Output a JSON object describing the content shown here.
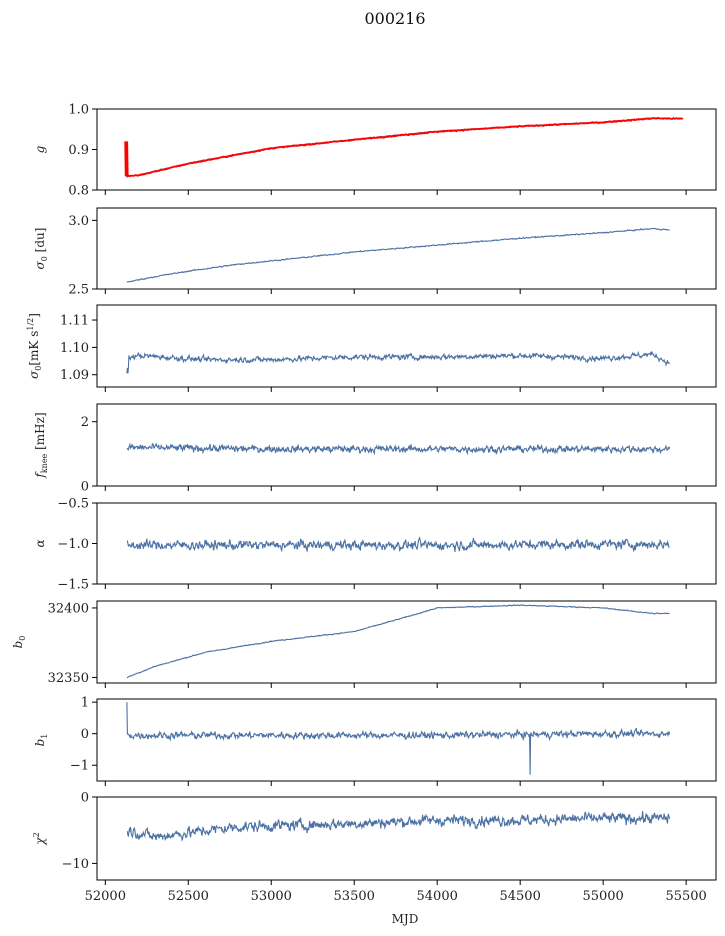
{
  "figure": {
    "title": "000216",
    "xlabel": "MJD",
    "x_ticks": [
      52000,
      52500,
      53000,
      53500,
      54000,
      54500,
      55000,
      55500
    ],
    "xlim": [
      51950,
      55680
    ]
  },
  "chart_data": [
    {
      "type": "line",
      "ylabel_sym": "g",
      "ylabel_sub": "",
      "ylabel_rest": "",
      "ylim": [
        0.8,
        1.0
      ],
      "y_ticks": [
        0.8,
        0.9,
        1.0
      ],
      "y_tick_labels": [
        "0.8",
        "0.9",
        "1.0"
      ],
      "series": [
        {
          "color": "#4c72a4",
          "noise": 0.001,
          "x": [
            52120,
            52200,
            52500,
            53000,
            53500,
            54000,
            54500,
            55000,
            55300,
            55480
          ],
          "y": [
            0.834,
            0.837,
            0.866,
            0.904,
            0.925,
            0.945,
            0.958,
            0.968,
            0.978,
            0.976
          ]
        },
        {
          "color": "#ff0000",
          "noise": 0.0015,
          "spike": [
            52130,
            0.92
          ],
          "x": [
            52120,
            52200,
            52500,
            53000,
            53500,
            54000,
            54500,
            55000,
            55300,
            55480
          ],
          "y": [
            0.834,
            0.836,
            0.865,
            0.903,
            0.924,
            0.944,
            0.957,
            0.967,
            0.977,
            0.976
          ]
        }
      ]
    },
    {
      "type": "line",
      "ylabel_sym": "σ",
      "ylabel_sub": "0",
      "ylabel_rest": " [du]",
      "ylim": [
        2.5,
        3.09
      ],
      "y_ticks": [
        2.5,
        3.0
      ],
      "y_tick_labels": [
        "2.5",
        "3.0"
      ],
      "series": [
        {
          "color": "#4c72a4",
          "noise": 0.005,
          "x": [
            52130,
            52300,
            52500,
            52800,
            53200,
            53500,
            54000,
            54500,
            55000,
            55300,
            55400
          ],
          "y": [
            2.55,
            2.59,
            2.63,
            2.68,
            2.73,
            2.77,
            2.82,
            2.87,
            2.91,
            2.94,
            2.93
          ]
        }
      ]
    },
    {
      "type": "line",
      "ylabel_sym": "σ",
      "ylabel_sub": "0",
      "ylabel_rest": "[mK s",
      "ylabel_sup": "1/2",
      "ylabel_end": "]",
      "ylim": [
        1.0855,
        1.1155
      ],
      "y_ticks": [
        1.09,
        1.1,
        1.11
      ],
      "y_tick_labels": [
        "1.09",
        "1.10",
        "1.11"
      ],
      "series": [
        {
          "color": "#4c72a4",
          "noise": 0.0012,
          "start_dip": 1.0905,
          "x": [
            52130,
            52200,
            52600,
            53000,
            53500,
            54000,
            54500,
            55000,
            55300,
            55400
          ],
          "y": [
            1.096,
            1.097,
            1.0955,
            1.0955,
            1.0965,
            1.0965,
            1.097,
            1.096,
            1.0975,
            1.094
          ]
        }
      ]
    },
    {
      "type": "line",
      "ylabel_sym": "f",
      "ylabel_sub": "knee",
      "ylabel_rest": " [mHz]",
      "ylim": [
        0,
        2.55
      ],
      "y_ticks": [
        0,
        2
      ],
      "y_tick_labels": [
        "0",
        "2"
      ],
      "series": [
        {
          "color": "#4c72a4",
          "noise": 0.13,
          "x": [
            52130,
            53000,
            54000,
            55000,
            55400
          ],
          "y": [
            1.2,
            1.15,
            1.15,
            1.15,
            1.15
          ]
        }
      ]
    },
    {
      "type": "line",
      "ylabel_sym": "α",
      "ylabel_sub": "",
      "ylabel_rest": "",
      "ylim": [
        -1.5,
        -0.5
      ],
      "y_ticks": [
        -1.5,
        -1.0,
        -0.5
      ],
      "y_tick_labels": [
        "−1.5",
        "−1.0",
        "−0.5"
      ],
      "series": [
        {
          "color": "#4c72a4",
          "noise": 0.07,
          "x": [
            52130,
            53000,
            54000,
            55000,
            55400
          ],
          "y": [
            -1.02,
            -1.02,
            -1.02,
            -1.01,
            -1.01
          ]
        }
      ]
    },
    {
      "type": "line",
      "ylabel_sym": "b",
      "ylabel_sub": "0",
      "ylabel_rest": "",
      "ylim": [
        32346,
        32405
      ],
      "y_ticks": [
        32350,
        32400
      ],
      "y_tick_labels": [
        "32350",
        "32400"
      ],
      "series": [
        {
          "color": "#4c72a4",
          "noise": 0.4,
          "x": [
            52130,
            52300,
            52600,
            53000,
            53500,
            53800,
            54000,
            54500,
            55000,
            55300,
            55400
          ],
          "y": [
            32350,
            32358,
            32368,
            32376,
            32383,
            32393,
            32400,
            32402,
            32400,
            32396,
            32396
          ]
        }
      ]
    },
    {
      "type": "line",
      "ylabel_sym": "b",
      "ylabel_sub": "1",
      "ylabel_rest": "",
      "ylim": [
        -1.5,
        1.1
      ],
      "y_ticks": [
        -1,
        0,
        1
      ],
      "y_tick_labels": [
        "−1",
        "0",
        "1"
      ],
      "series": [
        {
          "color": "#4c72a4",
          "noise": 0.13,
          "start_spike": 1.0,
          "dip": [
            54560,
            -1.3
          ],
          "x": [
            52130,
            53000,
            54000,
            55000,
            55400
          ],
          "y": [
            -0.05,
            -0.05,
            -0.05,
            0.0,
            0.0
          ]
        }
      ]
    },
    {
      "type": "line",
      "ylabel_sym": "χ",
      "ylabel_sub": "",
      "ylabel_rest": "",
      "ylabel_sup": "2",
      "ylim": [
        -12.5,
        0
      ],
      "y_ticks": [
        -10,
        0
      ],
      "y_tick_labels": [
        "−10",
        "0"
      ],
      "series": [
        {
          "color": "#4c72a4",
          "noise": 1.0,
          "x": [
            52130,
            52300,
            52800,
            53500,
            54000,
            54500,
            55000,
            55400
          ],
          "y": [
            -5.0,
            -6.0,
            -4.5,
            -4.0,
            -3.5,
            -3.5,
            -3.2,
            -3.2
          ]
        }
      ]
    }
  ]
}
